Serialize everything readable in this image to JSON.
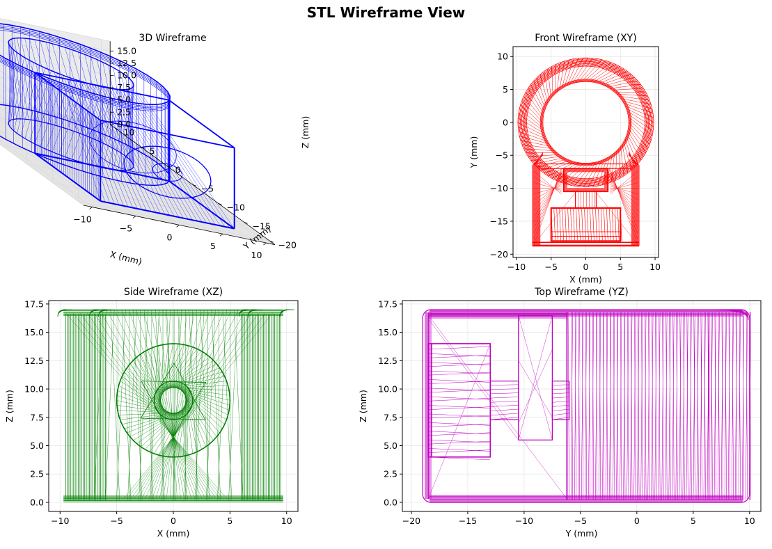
{
  "figure_title": "STL Wireframe View",
  "colors": {
    "view3d": "#0000ff",
    "front": "#ff0000",
    "side": "#008000",
    "top": "#bf00bf",
    "grid": "#e6e6e6"
  },
  "chart_data": [
    {
      "type": "wireframe-3d",
      "title": "3D Wireframe",
      "xlabel": "X (mm)",
      "ylabel": "Y (mm)",
      "zlabel": "Z (mm)",
      "xticks": [
        "−10",
        "−5",
        "0",
        "5",
        "10"
      ],
      "yticks": [
        "−20",
        "−15",
        "−10",
        "−5",
        "0",
        "5",
        "10"
      ],
      "zticks": [
        "0.0",
        "2.5",
        "5.0",
        "7.5",
        "10.0",
        "12.5",
        "15.0"
      ],
      "color": "blue"
    },
    {
      "type": "wireframe",
      "title": "Front Wireframe (XY)",
      "xlabel": "X (mm)",
      "ylabel": "Y (mm)",
      "xlim": [
        -10.5,
        10.5
      ],
      "ylim": [
        -20.5,
        11.5
      ],
      "xticks": [
        -10,
        -5,
        0,
        5,
        10
      ],
      "yticks": [
        -20,
        -15,
        -10,
        -5,
        0,
        5,
        10
      ],
      "xtick_labels": [
        "−10",
        "−5",
        "0",
        "5",
        "10"
      ],
      "ytick_labels": [
        "−20",
        "−15",
        "−10",
        "−5",
        "0",
        "5",
        "10"
      ],
      "grid": true,
      "color": "red",
      "shapes": {
        "ring_center": [
          0,
          0
        ],
        "ring_outer_r": 9.8,
        "ring_inner_r": 6.2,
        "body": [
          -7.7,
          -18.7,
          7.7,
          -6.0
        ],
        "upper_pocket": [
          -3.2,
          -10.5,
          3.2,
          -7.0
        ],
        "neck": [
          -1.5,
          -13.0,
          1.5,
          -10.5
        ],
        "lower_pocket": [
          -5.0,
          -18.0,
          5.0,
          -13.0
        ]
      }
    },
    {
      "type": "wireframe",
      "title": "Side Wireframe (XZ)",
      "xlabel": "X (mm)",
      "ylabel": "Z (mm)",
      "xlim": [
        -11,
        11
      ],
      "ylim": [
        -0.8,
        17.8
      ],
      "xticks": [
        -10,
        -5,
        0,
        5,
        10
      ],
      "yticks": [
        0,
        2.5,
        5,
        7.5,
        10,
        12.5,
        15,
        17.5
      ],
      "xtick_labels": [
        "−10",
        "−5",
        "0",
        "5",
        "10"
      ],
      "ytick_labels": [
        "0.0",
        "2.5",
        "5.0",
        "7.5",
        "10.0",
        "12.5",
        "15.0",
        "17.5"
      ],
      "grid": true,
      "color": "green",
      "shapes": {
        "body": [
          -10,
          0,
          10,
          17
        ],
        "circle_center": [
          0,
          9
        ],
        "circle_outer_r": 5,
        "circle_inner_r": 1.7
      }
    },
    {
      "type": "wireframe",
      "title": "Top Wireframe (YZ)",
      "xlabel": "Y (mm)",
      "ylabel": "Z (mm)",
      "xlim": [
        -20.8,
        11
      ],
      "ylim": [
        -0.8,
        17.8
      ],
      "xticks": [
        -20,
        -15,
        -10,
        -5,
        0,
        5,
        10
      ],
      "yticks": [
        0,
        2.5,
        5,
        7.5,
        10,
        12.5,
        15,
        17.5
      ],
      "xtick_labels": [
        "−20",
        "−15",
        "−10",
        "−5",
        "0",
        "5",
        "10"
      ],
      "ytick_labels": [
        "0.0",
        "2.5",
        "5.0",
        "7.5",
        "10.0",
        "12.5",
        "15.0",
        "17.5"
      ],
      "grid": true,
      "color": "magenta",
      "shapes": {
        "body": [
          -19,
          0,
          10,
          17
        ],
        "left_block": [
          -18.5,
          4,
          -13,
          14
        ],
        "mid_block": [
          -13,
          7.3,
          -10.5,
          10.7
        ],
        "slot": [
          -10.5,
          5.5,
          -7.5,
          16.5
        ],
        "right_block": [
          -7.5,
          7.3,
          -6,
          10.7
        ]
      }
    }
  ]
}
